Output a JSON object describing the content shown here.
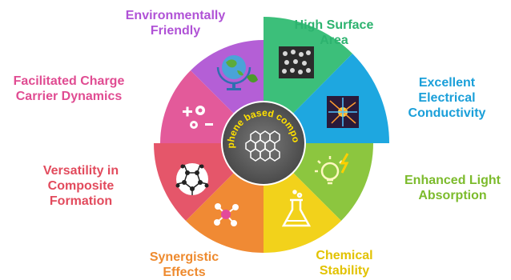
{
  "center_text": "Graphene based composites",
  "segments": [
    {
      "key": "surface",
      "lines": [
        "High Surface",
        "Area"
      ],
      "color": "#3cbf7a",
      "icon": "graphene-cubes-icon"
    },
    {
      "key": "electrical",
      "lines": [
        "Excellent",
        "Electrical",
        "Conductivity"
      ],
      "color": "#1ea7e0",
      "icon": "electric-spark-icon"
    },
    {
      "key": "light",
      "lines": [
        "Enhanced Light",
        "Absorption"
      ],
      "color": "#8cc63f",
      "icon": "lightbulb-bolt-icon"
    },
    {
      "key": "chemical",
      "lines": [
        "Chemical",
        "Stability"
      ],
      "color": "#f2d21b",
      "icon": "flask-icon"
    },
    {
      "key": "synergistic",
      "lines": [
        "Synergistic",
        "Effects"
      ],
      "color": "#f08a34",
      "icon": "molecule-icon"
    },
    {
      "key": "versatility",
      "lines": [
        "Versatility in",
        "Composite",
        "Formation"
      ],
      "color": "#e5566a",
      "icon": "fullerene-icon"
    },
    {
      "key": "charge",
      "lines": [
        "Facilitated Charge",
        "Carrier Dynamics"
      ],
      "color": "#e35a9a",
      "icon": "charge-carriers-icon"
    },
    {
      "key": "environment",
      "lines": [
        "Environmentally",
        "Friendly"
      ],
      "color": "#b45fd6",
      "icon": "globe-leaf-icon"
    }
  ],
  "label_colors": {
    "surface": "#2db36f",
    "electrical": "#1a9fd9",
    "light": "#7cbb2c",
    "chemical": "#e2c200",
    "synergistic": "#ee8a2e",
    "versatility": "#e24b5d",
    "charge": "#e04c92",
    "environment": "#b052d6"
  }
}
